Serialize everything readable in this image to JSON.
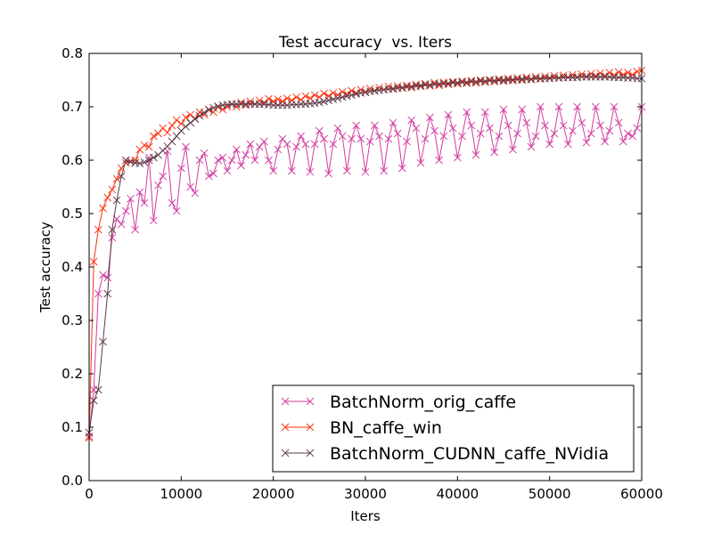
{
  "chart_data": {
    "type": "line",
    "title": "Test accuracy  vs. Iters",
    "xlabel": "Iters",
    "ylabel": "Test accuracy",
    "xlim": [
      0,
      60000
    ],
    "ylim": [
      0.0,
      0.8
    ],
    "xticks": [
      "0",
      "10000",
      "20000",
      "30000",
      "40000",
      "50000",
      "60000"
    ],
    "xtick_values": [
      0,
      10000,
      20000,
      30000,
      40000,
      50000,
      60000
    ],
    "yticks": [
      "0.0",
      "0.1",
      "0.2",
      "0.3",
      "0.4",
      "0.5",
      "0.6",
      "0.7",
      "0.8"
    ],
    "ytick_values": [
      0,
      0.1,
      0.2,
      0.3,
      0.4,
      0.5,
      0.6,
      0.7,
      0.8
    ],
    "grid": false,
    "legend_position": "lower-right",
    "x_start": 0,
    "x_step": 500,
    "series": [
      {
        "name": "BatchNorm_orig_caffe",
        "color": "#d23da0",
        "marker": "x",
        "values": [
          0.083,
          0.17,
          0.35,
          0.385,
          0.38,
          0.455,
          0.49,
          0.48,
          0.505,
          0.528,
          0.47,
          0.54,
          0.52,
          0.605,
          0.487,
          0.553,
          0.57,
          0.617,
          0.52,
          0.505,
          0.585,
          0.625,
          0.55,
          0.538,
          0.6,
          0.613,
          0.57,
          0.575,
          0.6,
          0.605,
          0.58,
          0.6,
          0.62,
          0.59,
          0.61,
          0.63,
          0.6,
          0.625,
          0.635,
          0.6,
          0.58,
          0.62,
          0.64,
          0.63,
          0.58,
          0.625,
          0.645,
          0.63,
          0.578,
          0.63,
          0.655,
          0.64,
          0.575,
          0.63,
          0.66,
          0.645,
          0.58,
          0.64,
          0.665,
          0.64,
          0.578,
          0.635,
          0.665,
          0.645,
          0.58,
          0.64,
          0.67,
          0.65,
          0.585,
          0.635,
          0.675,
          0.66,
          0.595,
          0.64,
          0.68,
          0.655,
          0.6,
          0.645,
          0.685,
          0.66,
          0.605,
          0.645,
          0.69,
          0.665,
          0.61,
          0.65,
          0.69,
          0.66,
          0.615,
          0.645,
          0.695,
          0.665,
          0.62,
          0.65,
          0.695,
          0.67,
          0.625,
          0.645,
          0.7,
          0.665,
          0.63,
          0.65,
          0.7,
          0.665,
          0.63,
          0.655,
          0.7,
          0.67,
          0.633,
          0.65,
          0.7,
          0.665,
          0.635,
          0.655,
          0.7,
          0.67,
          0.635,
          0.65,
          0.645,
          0.66,
          0.7
        ]
      },
      {
        "name": "BN_caffe_win",
        "color": "#ff3010",
        "marker": "x",
        "values": [
          0.08,
          0.41,
          0.47,
          0.51,
          0.53,
          0.545,
          0.565,
          0.585,
          0.595,
          0.598,
          0.6,
          0.62,
          0.628,
          0.625,
          0.645,
          0.65,
          0.66,
          0.652,
          0.665,
          0.675,
          0.668,
          0.68,
          0.685,
          0.678,
          0.69,
          0.685,
          0.695,
          0.69,
          0.7,
          0.695,
          0.7,
          0.705,
          0.7,
          0.708,
          0.703,
          0.71,
          0.705,
          0.712,
          0.708,
          0.715,
          0.71,
          0.714,
          0.71,
          0.716,
          0.712,
          0.718,
          0.713,
          0.72,
          0.716,
          0.722,
          0.718,
          0.725,
          0.72,
          0.726,
          0.722,
          0.728,
          0.724,
          0.73,
          0.726,
          0.732,
          0.728,
          0.734,
          0.73,
          0.736,
          0.732,
          0.738,
          0.733,
          0.739,
          0.735,
          0.74,
          0.736,
          0.742,
          0.738,
          0.743,
          0.739,
          0.745,
          0.74,
          0.746,
          0.742,
          0.747,
          0.743,
          0.748,
          0.744,
          0.749,
          0.745,
          0.75,
          0.746,
          0.751,
          0.747,
          0.752,
          0.748,
          0.753,
          0.749,
          0.754,
          0.75,
          0.755,
          0.751,
          0.756,
          0.752,
          0.757,
          0.753,
          0.758,
          0.754,
          0.759,
          0.755,
          0.76,
          0.756,
          0.761,
          0.757,
          0.762,
          0.758,
          0.763,
          0.758,
          0.764,
          0.759,
          0.765,
          0.76,
          0.764,
          0.76,
          0.766,
          0.768
        ]
      },
      {
        "name": "BatchNorm_CUDNN_caffe_NVidia",
        "color": "#5a3a48",
        "marker": "x",
        "values": [
          0.09,
          0.15,
          0.17,
          0.26,
          0.35,
          0.47,
          0.525,
          0.57,
          0.6,
          0.597,
          0.595,
          0.594,
          0.596,
          0.6,
          0.605,
          0.61,
          0.618,
          0.626,
          0.635,
          0.645,
          0.655,
          0.663,
          0.67,
          0.677,
          0.683,
          0.689,
          0.694,
          0.698,
          0.701,
          0.703,
          0.704,
          0.705,
          0.705,
          0.705,
          0.705,
          0.705,
          0.705,
          0.705,
          0.705,
          0.704,
          0.703,
          0.703,
          0.703,
          0.703,
          0.704,
          0.704,
          0.705,
          0.705,
          0.706,
          0.707,
          0.708,
          0.71,
          0.712,
          0.714,
          0.716,
          0.718,
          0.72,
          0.722,
          0.724,
          0.726,
          0.727,
          0.729,
          0.73,
          0.731,
          0.732,
          0.733,
          0.734,
          0.735,
          0.736,
          0.737,
          0.738,
          0.739,
          0.74,
          0.741,
          0.741,
          0.742,
          0.743,
          0.743,
          0.744,
          0.745,
          0.745,
          0.746,
          0.746,
          0.747,
          0.747,
          0.748,
          0.748,
          0.749,
          0.749,
          0.75,
          0.75,
          0.75,
          0.751,
          0.751,
          0.752,
          0.752,
          0.752,
          0.753,
          0.753,
          0.753,
          0.754,
          0.754,
          0.754,
          0.755,
          0.755,
          0.755,
          0.755,
          0.756,
          0.756,
          0.756,
          0.756,
          0.756,
          0.756,
          0.756,
          0.755,
          0.755,
          0.755,
          0.754,
          0.754,
          0.753,
          0.753
        ]
      }
    ]
  }
}
